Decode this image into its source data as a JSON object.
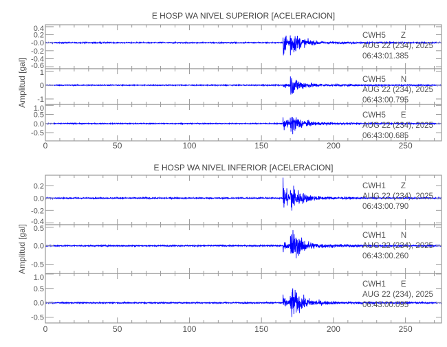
{
  "chart_data": [
    {
      "type": "line",
      "title": "E HOSP WA NIVEL SUPERIOR [ACELERACION]",
      "ylabel": "Amplitud [gal]",
      "xlim": [
        0,
        275
      ],
      "xticks": [
        0,
        50,
        100,
        150,
        200,
        250
      ],
      "line_color": "#0000ff",
      "panels": [
        {
          "station": "CWH5",
          "component": "Z",
          "date": "AUG 22 (234), 2025",
          "time": "06:43:01.385",
          "ylim": [
            -0.65,
            0.45
          ],
          "yticks": [
            -0.6,
            -0.4,
            -0.2,
            0.0,
            0.2,
            0.4
          ],
          "ytick_labels": [
            "-0.6",
            "-0.4",
            "-0.2",
            "-0.0",
            "0.2",
            "0.4"
          ],
          "p_arrival": 165,
          "s_arrival": 170,
          "peak_p": 0.55,
          "peak_s": 0.4
        },
        {
          "station": "CWH5",
          "component": "N",
          "date": "AUG 22 (234), 2025",
          "time": "06:43:00.795",
          "ylim": [
            -1.4,
            1.2
          ],
          "yticks": [
            -1,
            0,
            1
          ],
          "ytick_labels": [
            "-1",
            "0",
            "1"
          ],
          "p_arrival": 165,
          "s_arrival": 170,
          "peak_p": 0.3,
          "peak_s": 1.1
        },
        {
          "station": "CWH5",
          "component": "E",
          "date": "AUG 22 (234), 2025",
          "time": "06:43:00.685",
          "ylim": [
            -0.95,
            1.05
          ],
          "yticks": [
            -0.5,
            0.0,
            0.5,
            1.0
          ],
          "ytick_labels": [
            "-0.5",
            "0.0",
            "0.5",
            "1.0"
          ],
          "p_arrival": 165,
          "s_arrival": 170,
          "peak_p": 0.6,
          "peak_s": 0.85
        }
      ]
    },
    {
      "type": "line",
      "title": "E HOSP WA NIVEL INFERIOR [ACELERACION]",
      "ylabel": "Amplitud [gal]",
      "xlim": [
        0,
        275
      ],
      "xticks": [
        0,
        50,
        100,
        150,
        200,
        250
      ],
      "line_color": "#0000ff",
      "panels": [
        {
          "station": "CWH1",
          "component": "Z",
          "date": "AUG 22 (234), 2025",
          "time": "06:43:00.790",
          "ylim": [
            -0.43,
            0.37
          ],
          "yticks": [
            -0.4,
            -0.2,
            0.0,
            0.2
          ],
          "ytick_labels": [
            "-0.4",
            "-0.2",
            "0.0",
            "0.2"
          ],
          "p_arrival": 165,
          "s_arrival": 170,
          "peak_p": 0.4,
          "peak_s": 0.3
        },
        {
          "station": "CWH1",
          "component": "N",
          "date": "AUG 22 (234), 2025",
          "time": "06:43:00.260",
          "ylim": [
            -0.75,
            0.57
          ],
          "yticks": [
            -0.5,
            0.0,
            0.5
          ],
          "ytick_labels": [
            "-0.5",
            "0.0",
            "0.5"
          ],
          "p_arrival": 165,
          "s_arrival": 170,
          "peak_p": 0.2,
          "peak_s": 0.7
        },
        {
          "station": "CWH1",
          "component": "E",
          "date": "AUG 22 (234), 2025",
          "time": "06:43:00.095",
          "ylim": [
            -0.7,
            1.02
          ],
          "yticks": [
            -0.5,
            0.0,
            0.5,
            1.0
          ],
          "ytick_labels": [
            "-0.5",
            "0.0",
            "0.5",
            "1.0"
          ],
          "p_arrival": 165,
          "s_arrival": 170,
          "peak_p": 0.35,
          "peak_s": 0.85
        }
      ]
    }
  ]
}
